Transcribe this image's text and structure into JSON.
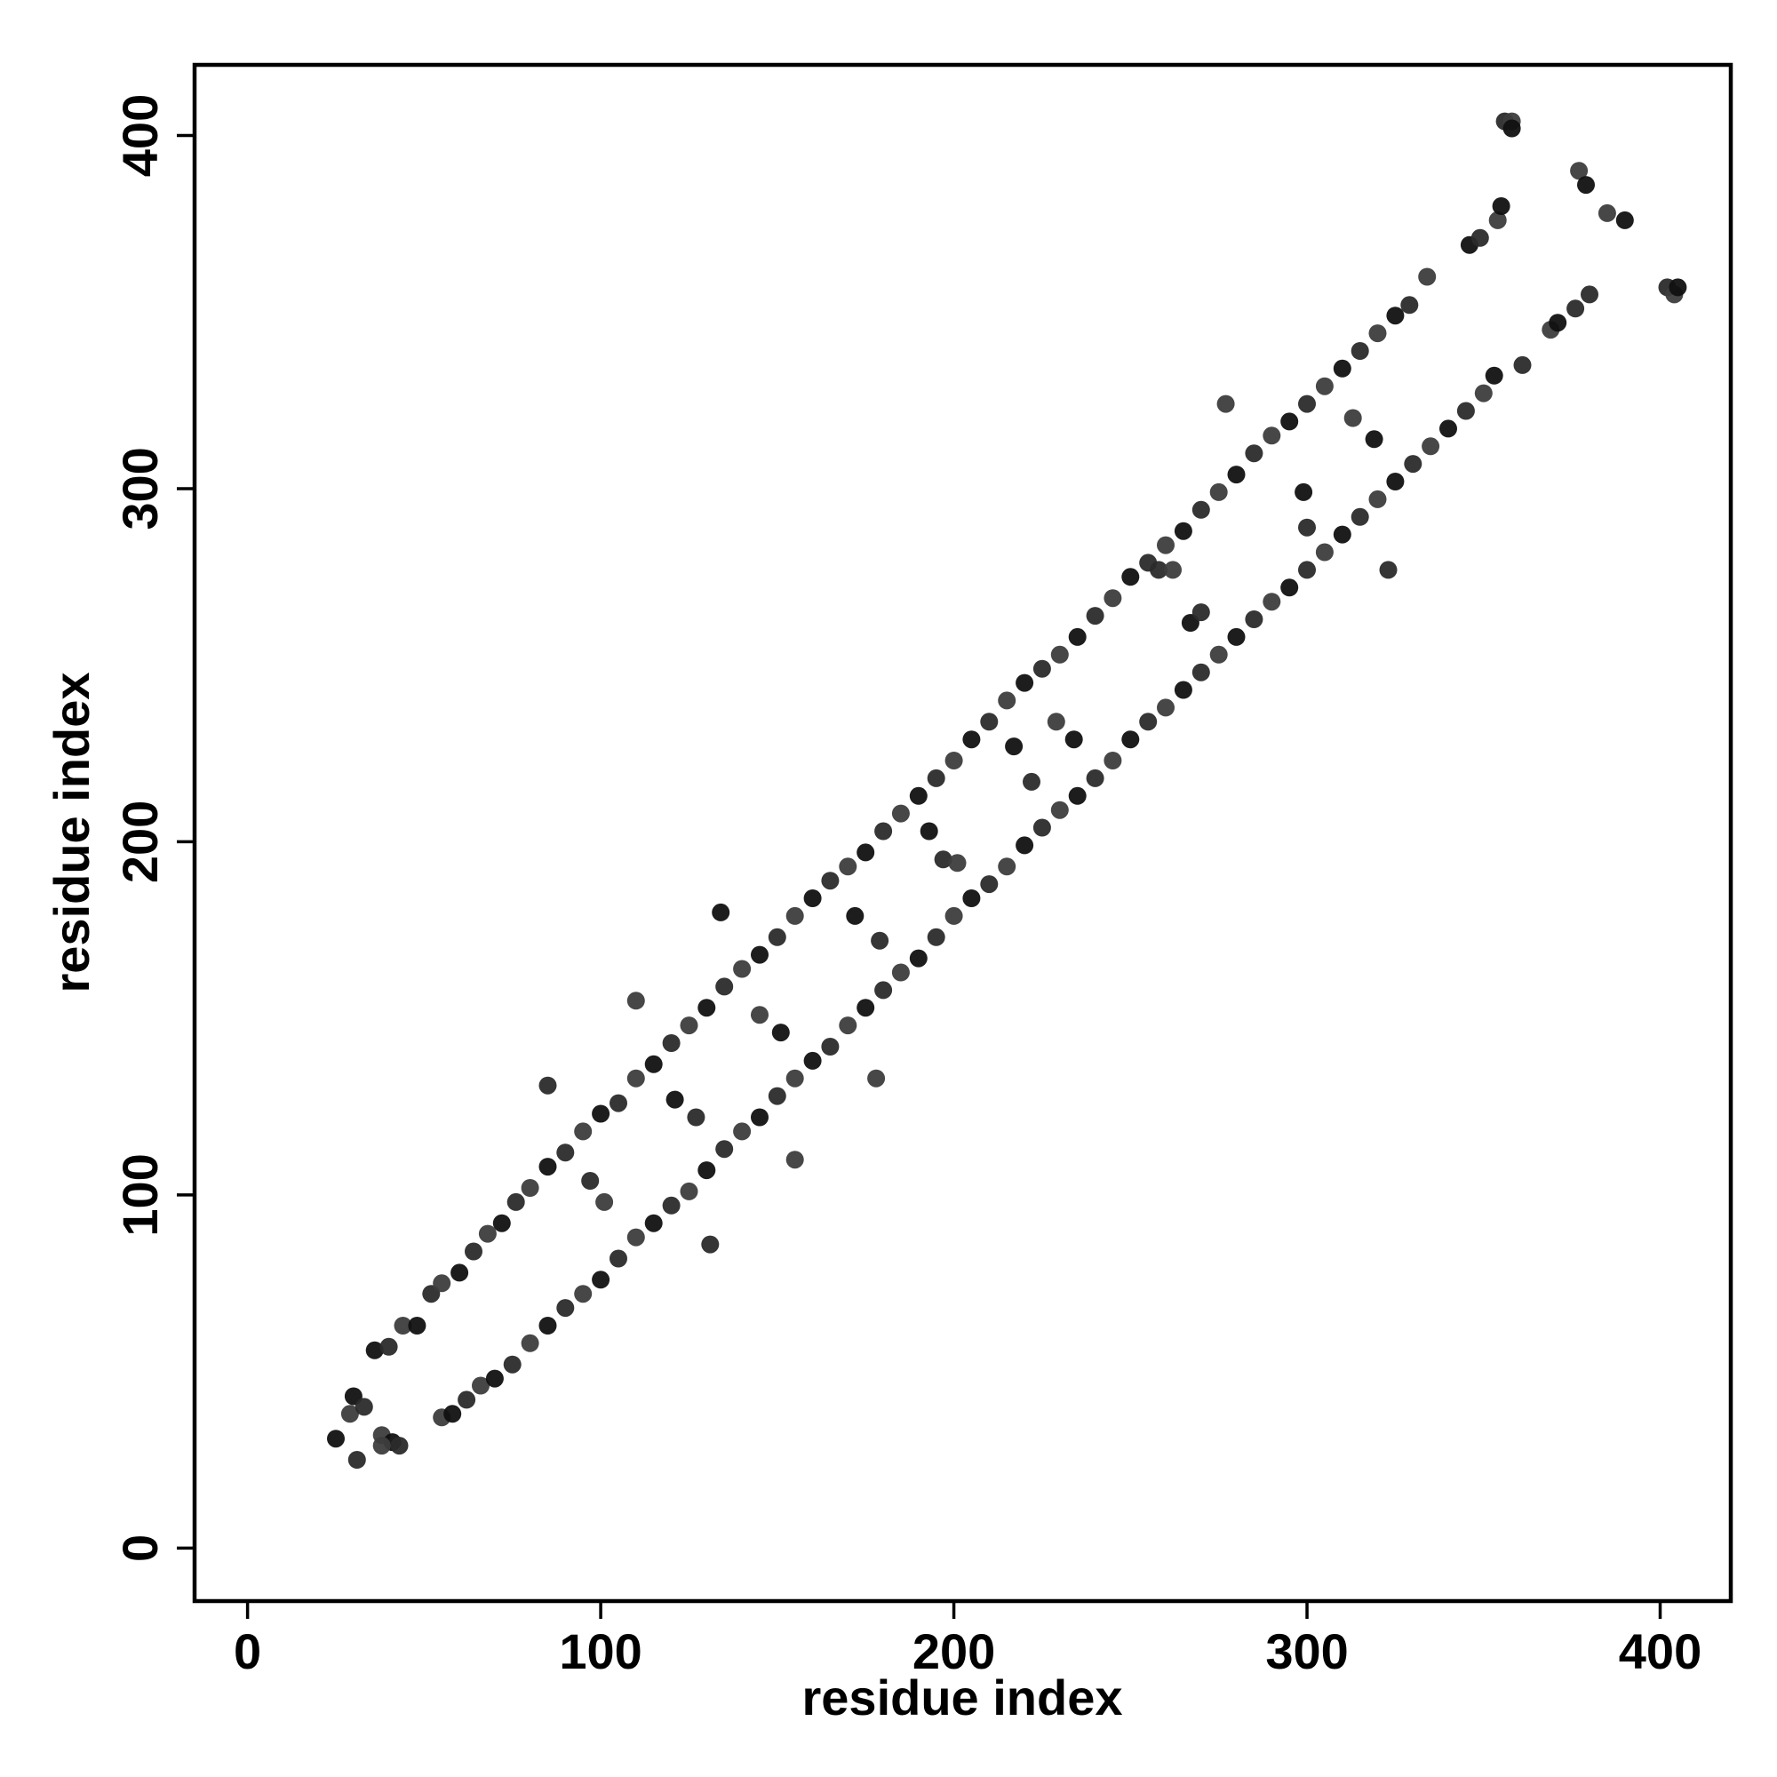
{
  "chart_data": {
    "type": "scatter",
    "title": "",
    "xlabel": "residue index",
    "ylabel": "residue index",
    "xlim": [
      -15,
      420
    ],
    "ylim": [
      -15,
      420
    ],
    "xticks": [
      0,
      100,
      200,
      300,
      400
    ],
    "yticks": [
      0,
      100,
      200,
      300,
      400
    ],
    "xtick_labels": [
      "0",
      "100",
      "200",
      "300",
      "400"
    ],
    "ytick_labels": [
      "0",
      "100",
      "200",
      "300",
      "400"
    ],
    "grid": false,
    "legend": "none",
    "marker_colors": [
      "#111111",
      "#2b2b2b",
      "#3d3d3d"
    ],
    "series": [
      {
        "points": [
          [
            25,
            31
          ],
          [
            31,
            25
          ],
          [
            29,
            38
          ],
          [
            30,
            43
          ],
          [
            33,
            40
          ],
          [
            38,
            32
          ],
          [
            41,
            30
          ],
          [
            43,
            29
          ],
          [
            38,
            29
          ],
          [
            36,
            56
          ],
          [
            40,
            57
          ],
          [
            44,
            63
          ],
          [
            48,
            63
          ],
          [
            52,
            72
          ],
          [
            55,
            75
          ],
          [
            60,
            78
          ],
          [
            64,
            84
          ],
          [
            68,
            89
          ],
          [
            72,
            92
          ],
          [
            76,
            98
          ],
          [
            80,
            102
          ],
          [
            85,
            108
          ],
          [
            90,
            112
          ],
          [
            95,
            118
          ],
          [
            100,
            123
          ],
          [
            105,
            126
          ],
          [
            110,
            133
          ],
          [
            115,
            137
          ],
          [
            120,
            143
          ],
          [
            125,
            148
          ],
          [
            130,
            153
          ],
          [
            135,
            159
          ],
          [
            140,
            164
          ],
          [
            145,
            168
          ],
          [
            150,
            173
          ],
          [
            155,
            179
          ],
          [
            160,
            184
          ],
          [
            165,
            189
          ],
          [
            170,
            193
          ],
          [
            175,
            197
          ],
          [
            180,
            203
          ],
          [
            185,
            208
          ],
          [
            190,
            213
          ],
          [
            195,
            218
          ],
          [
            200,
            223
          ],
          [
            205,
            229
          ],
          [
            210,
            234
          ],
          [
            215,
            240
          ],
          [
            220,
            245
          ],
          [
            225,
            249
          ],
          [
            230,
            253
          ],
          [
            235,
            258
          ],
          [
            240,
            264
          ],
          [
            245,
            269
          ],
          [
            250,
            275
          ],
          [
            255,
            279
          ],
          [
            260,
            284
          ],
          [
            265,
            288
          ],
          [
            270,
            294
          ],
          [
            275,
            299
          ],
          [
            280,
            304
          ],
          [
            285,
            310
          ],
          [
            290,
            315
          ],
          [
            295,
            319
          ],
          [
            300,
            324
          ],
          [
            305,
            329
          ],
          [
            310,
            334
          ],
          [
            315,
            339
          ],
          [
            320,
            344
          ],
          [
            325,
            349
          ],
          [
            329,
            352
          ],
          [
            55,
            37
          ],
          [
            58,
            38
          ],
          [
            62,
            42
          ],
          [
            66,
            46
          ],
          [
            70,
            48
          ],
          [
            75,
            52
          ],
          [
            80,
            58
          ],
          [
            85,
            63
          ],
          [
            90,
            68
          ],
          [
            95,
            72
          ],
          [
            100,
            76
          ],
          [
            105,
            82
          ],
          [
            110,
            88
          ],
          [
            115,
            92
          ],
          [
            120,
            97
          ],
          [
            125,
            101
          ],
          [
            130,
            107
          ],
          [
            135,
            113
          ],
          [
            140,
            118
          ],
          [
            145,
            122
          ],
          [
            150,
            128
          ],
          [
            155,
            133
          ],
          [
            160,
            138
          ],
          [
            165,
            142
          ],
          [
            170,
            148
          ],
          [
            175,
            153
          ],
          [
            180,
            158
          ],
          [
            185,
            163
          ],
          [
            190,
            167
          ],
          [
            195,
            173
          ],
          [
            200,
            179
          ],
          [
            205,
            184
          ],
          [
            210,
            188
          ],
          [
            215,
            193
          ],
          [
            220,
            199
          ],
          [
            225,
            204
          ],
          [
            230,
            209
          ],
          [
            235,
            213
          ],
          [
            240,
            218
          ],
          [
            245,
            223
          ],
          [
            250,
            229
          ],
          [
            255,
            234
          ],
          [
            260,
            238
          ],
          [
            265,
            243
          ],
          [
            270,
            248
          ],
          [
            275,
            253
          ],
          [
            280,
            258
          ],
          [
            285,
            263
          ],
          [
            290,
            268
          ],
          [
            295,
            272
          ],
          [
            300,
            277
          ],
          [
            305,
            282
          ],
          [
            310,
            287
          ],
          [
            315,
            292
          ],
          [
            320,
            297
          ],
          [
            325,
            302
          ],
          [
            330,
            307
          ],
          [
            335,
            312
          ],
          [
            340,
            317
          ],
          [
            345,
            322
          ],
          [
            350,
            327
          ],
          [
            353,
            332
          ],
          [
            85,
            131
          ],
          [
            110,
            155
          ],
          [
            134,
            180
          ],
          [
            97,
            104
          ],
          [
            101,
            98
          ],
          [
            121,
            127
          ],
          [
            127,
            122
          ],
          [
            145,
            151
          ],
          [
            151,
            146
          ],
          [
            131,
            86
          ],
          [
            155,
            110
          ],
          [
            172,
            179
          ],
          [
            179,
            172
          ],
          [
            178,
            133
          ],
          [
            193,
            203
          ],
          [
            197,
            195
          ],
          [
            201,
            194
          ],
          [
            217,
            227
          ],
          [
            222,
            217
          ],
          [
            229,
            234
          ],
          [
            234,
            229
          ],
          [
            258,
            277
          ],
          [
            262,
            277
          ],
          [
            267,
            262
          ],
          [
            270,
            265
          ],
          [
            277,
            324
          ],
          [
            299,
            299
          ],
          [
            300,
            289
          ],
          [
            313,
            320
          ],
          [
            319,
            314
          ],
          [
            323,
            277
          ],
          [
            334,
            360
          ],
          [
            346,
            369
          ],
          [
            349,
            371
          ],
          [
            354,
            376
          ],
          [
            355,
            380
          ],
          [
            356,
            404
          ],
          [
            358,
            404
          ],
          [
            358,
            402
          ],
          [
            361,
            335
          ],
          [
            369,
            345
          ],
          [
            371,
            347
          ],
          [
            376,
            351
          ],
          [
            377,
            390
          ],
          [
            379,
            386
          ],
          [
            380,
            355
          ],
          [
            385,
            378
          ],
          [
            390,
            376
          ],
          [
            402,
            357
          ],
          [
            404,
            355
          ],
          [
            405,
            357
          ]
        ]
      }
    ]
  }
}
